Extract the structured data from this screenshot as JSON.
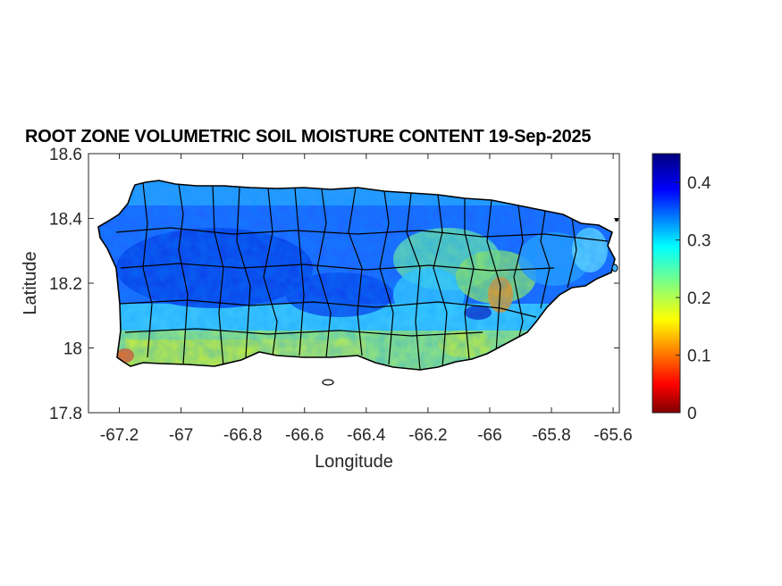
{
  "title": "ROOT ZONE VOLUMETRIC SOIL MOISTURE CONTENT 19-Sep-2025",
  "chart_data": {
    "type": "heatmap",
    "title": "ROOT ZONE VOLUMETRIC SOIL MOISTURE CONTENT 19-Sep-2025",
    "xlabel": "Longitude",
    "ylabel": "Latitude",
    "xlim": [
      -67.3,
      -65.58
    ],
    "ylim": [
      17.8,
      18.6
    ],
    "x_ticks": [
      "-67.2",
      "-67",
      "-66.8",
      "-66.6",
      "-66.4",
      "-66.2",
      "-66",
      "-65.8",
      "-65.6"
    ],
    "x_tick_values": [
      -67.2,
      -67.0,
      -66.8,
      -66.6,
      -66.4,
      -66.2,
      -66.0,
      -65.8,
      -65.6
    ],
    "y_ticks": [
      "18.6",
      "18.4",
      "18.2",
      "18",
      "17.8"
    ],
    "y_tick_values": [
      18.6,
      18.4,
      18.2,
      18.0,
      17.8
    ],
    "colorbar": {
      "colormap": "jet",
      "range": [
        0,
        0.45
      ],
      "ticks": [
        "0.4",
        "0.3",
        "0.2",
        "0.1",
        "0"
      ],
      "tick_values": [
        0.4,
        0.3,
        0.2,
        0.1,
        0
      ]
    },
    "colors": {
      "axis": "#262626",
      "boundary": "#000000"
    }
  }
}
